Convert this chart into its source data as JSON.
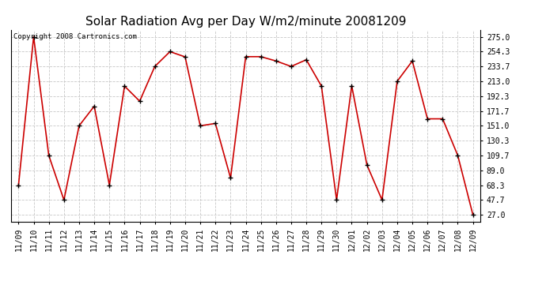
{
  "title": "Solar Radiation Avg per Day W/m2/minute 20081209",
  "copyright_text": "Copyright 2008 Cartronics.com",
  "labels": [
    "11/09",
    "11/10",
    "11/11",
    "11/12",
    "11/13",
    "11/14",
    "11/15",
    "11/16",
    "11/17",
    "11/18",
    "11/19",
    "11/20",
    "11/21",
    "11/22",
    "11/23",
    "11/24",
    "11/25",
    "11/26",
    "11/27",
    "11/28",
    "11/29",
    "11/30",
    "12/01",
    "12/02",
    "12/03",
    "12/04",
    "12/05",
    "12/06",
    "12/07",
    "12/08",
    "12/09"
  ],
  "values": [
    68.3,
    275.0,
    109.7,
    47.7,
    151.0,
    178.3,
    68.3,
    206.3,
    185.3,
    233.7,
    254.3,
    247.0,
    151.0,
    154.3,
    78.3,
    247.3,
    247.3,
    241.3,
    233.7,
    243.0,
    206.3,
    47.7,
    206.7,
    96.7,
    47.7,
    213.0,
    241.3,
    160.7,
    160.7,
    109.7,
    27.0
  ],
  "line_color": "#cc0000",
  "marker_color": "#000000",
  "bg_color": "#ffffff",
  "grid_color": "#c8c8c8",
  "yticks": [
    27.0,
    47.7,
    68.3,
    89.0,
    109.7,
    130.3,
    151.0,
    171.7,
    192.3,
    213.0,
    233.7,
    254.3,
    275.0
  ],
  "ylim": [
    17.0,
    285.0
  ],
  "xlim": [
    -0.5,
    30.5
  ],
  "title_fontsize": 11,
  "tick_fontsize": 7,
  "copyright_fontsize": 6.5
}
